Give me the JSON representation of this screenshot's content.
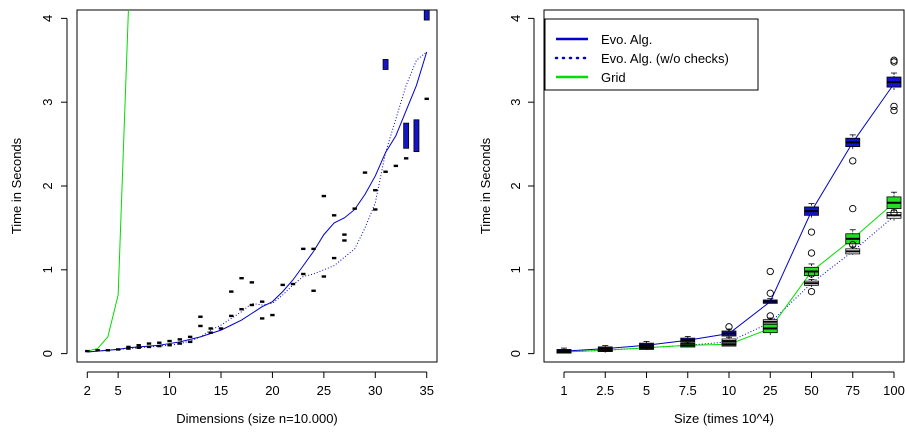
{
  "chart_data": [
    {
      "type": "line",
      "title": "",
      "xlabel": "Dimensions (size n=10.000)",
      "ylabel": "Time in Seconds",
      "xlim": [
        1,
        36
      ],
      "ylim": [
        -0.1,
        4.1
      ],
      "xticks": [
        2,
        5,
        10,
        15,
        20,
        25,
        30,
        35
      ],
      "yticks": [
        0,
        1,
        2,
        3,
        4
      ],
      "grid": false,
      "series": [
        {
          "name": "",
          "color": "#00dd00",
          "style": "solid",
          "x": [
            2,
            3,
            4,
            5,
            6
          ],
          "y": [
            0.03,
            0.06,
            0.2,
            0.7,
            4.1
          ]
        },
        {
          "name": "",
          "color": "#0000cc",
          "style": "solid",
          "x": [
            2,
            3,
            4,
            5,
            6,
            7,
            8,
            9,
            10,
            11,
            12,
            13,
            14,
            15,
            16,
            17,
            18,
            19,
            20,
            21,
            22,
            23,
            24,
            25,
            26,
            27,
            28,
            29,
            30,
            31,
            32,
            33,
            34,
            35
          ],
          "y": [
            0.02,
            0.03,
            0.04,
            0.05,
            0.07,
            0.08,
            0.09,
            0.1,
            0.12,
            0.14,
            0.17,
            0.2,
            0.24,
            0.28,
            0.34,
            0.4,
            0.48,
            0.56,
            0.62,
            0.74,
            0.88,
            1.05,
            1.22,
            1.42,
            1.56,
            1.62,
            1.72,
            1.9,
            2.12,
            2.4,
            2.6,
            2.9,
            3.2,
            3.6
          ]
        },
        {
          "name": "",
          "color": "#0000cc",
          "style": "dotted",
          "x": [
            2,
            3,
            4,
            5,
            6,
            7,
            8,
            9,
            10,
            11,
            12,
            13,
            14,
            15,
            16,
            17,
            18,
            19,
            20,
            21,
            22,
            23,
            24,
            25,
            26,
            27,
            28,
            29,
            30,
            31,
            32,
            33,
            34,
            35
          ],
          "y": [
            0.02,
            0.03,
            0.04,
            0.05,
            0.06,
            0.07,
            0.08,
            0.09,
            0.1,
            0.12,
            0.15,
            0.2,
            0.28,
            0.34,
            0.42,
            0.5,
            0.6,
            0.58,
            0.6,
            0.7,
            0.82,
            0.92,
            0.95,
            1.0,
            1.05,
            1.15,
            1.25,
            1.5,
            1.8,
            2.4,
            2.8,
            3.2,
            3.5,
            3.6
          ]
        }
      ],
      "boxes": [
        {
          "x": 31,
          "y": 3.45,
          "h": 0.12
        },
        {
          "x": 33,
          "y": 2.6,
          "h": 0.3
        },
        {
          "x": 34,
          "y": 2.6,
          "h": 0.38
        },
        {
          "x": 35,
          "y": 4.05,
          "h": 0.14
        }
      ],
      "points": [
        [
          2,
          0.03
        ],
        [
          3,
          0.04
        ],
        [
          4,
          0.04
        ],
        [
          5,
          0.05
        ],
        [
          6,
          0.06
        ],
        [
          7,
          0.07
        ],
        [
          8,
          0.08
        ],
        [
          9,
          0.09
        ],
        [
          10,
          0.1
        ],
        [
          11,
          0.12
        ],
        [
          12,
          0.14
        ],
        [
          6,
          0.08
        ],
        [
          7,
          0.1
        ],
        [
          8,
          0.12
        ],
        [
          9,
          0.13
        ],
        [
          10,
          0.15
        ],
        [
          11,
          0.17
        ],
        [
          12,
          0.2
        ],
        [
          13,
          0.44
        ],
        [
          13,
          0.33
        ],
        [
          14,
          0.25
        ],
        [
          14,
          0.3
        ],
        [
          15,
          0.3
        ],
        [
          16,
          0.74
        ],
        [
          16,
          0.45
        ],
        [
          17,
          0.9
        ],
        [
          17,
          0.53
        ],
        [
          18,
          0.58
        ],
        [
          18,
          0.85
        ],
        [
          19,
          0.42
        ],
        [
          19,
          0.62
        ],
        [
          20,
          0.46
        ],
        [
          21,
          0.82
        ],
        [
          22,
          0.83
        ],
        [
          23,
          1.25
        ],
        [
          23,
          0.95
        ],
        [
          24,
          1.25
        ],
        [
          24,
          0.75
        ],
        [
          25,
          1.88
        ],
        [
          25,
          0.92
        ],
        [
          26,
          1.65
        ],
        [
          26,
          1.14
        ],
        [
          27,
          1.42
        ],
        [
          27,
          1.35
        ],
        [
          28,
          1.73
        ],
        [
          29,
          2.16
        ],
        [
          30,
          1.95
        ],
        [
          30,
          1.72
        ],
        [
          31,
          2.17
        ],
        [
          32,
          2.24
        ],
        [
          33,
          2.33
        ],
        [
          35,
          3.04
        ]
      ]
    },
    {
      "type": "line",
      "title": "",
      "xlabel": "Size (times 10^4)",
      "ylabel": "Time in Seconds",
      "categories": [
        "1",
        "2.5",
        "5",
        "7.5",
        "10",
        "25",
        "50",
        "75",
        "100"
      ],
      "ylim": [
        -0.1,
        4.1
      ],
      "yticks": [
        0,
        1,
        2,
        3,
        4
      ],
      "grid": false,
      "legend_position": "top-left",
      "legend": [
        "Evo. Alg.",
        "Evo. Alg. (w/o checks)",
        "Grid"
      ],
      "series": [
        {
          "name": "Evo. Alg.",
          "color": "#0000cc",
          "style": "solid",
          "values": [
            0.03,
            0.06,
            0.1,
            0.16,
            0.24,
            0.62,
            1.7,
            2.52,
            3.22
          ]
        },
        {
          "name": "Evo. Alg. (w/o checks)",
          "color": "#0000cc",
          "style": "dotted",
          "values": [
            0.02,
            0.04,
            0.07,
            0.1,
            0.14,
            0.37,
            0.84,
            1.22,
            1.64
          ]
        },
        {
          "name": "Grid",
          "color": "#00dd00",
          "style": "solid",
          "values": [
            0.02,
            0.04,
            0.07,
            0.1,
            0.11,
            0.3,
            0.98,
            1.37,
            1.8
          ]
        }
      ],
      "boxes": [
        {
          "series": 0,
          "i": 0,
          "y": 0.03,
          "h": 0.04
        },
        {
          "series": 0,
          "i": 1,
          "y": 0.06,
          "h": 0.04
        },
        {
          "series": 0,
          "i": 2,
          "y": 0.1,
          "h": 0.05
        },
        {
          "series": 0,
          "i": 3,
          "y": 0.16,
          "h": 0.05
        },
        {
          "series": 0,
          "i": 4,
          "y": 0.24,
          "h": 0.06
        },
        {
          "series": 0,
          "i": 5,
          "y": 0.62,
          "h": 0.04
        },
        {
          "series": 0,
          "i": 6,
          "y": 1.7,
          "h": 0.1
        },
        {
          "series": 0,
          "i": 7,
          "y": 2.52,
          "h": 0.1
        },
        {
          "series": 0,
          "i": 8,
          "y": 3.24,
          "h": 0.12
        },
        {
          "series": 1,
          "i": 0,
          "y": 0.02,
          "h": 0.02
        },
        {
          "series": 1,
          "i": 1,
          "y": 0.04,
          "h": 0.03
        },
        {
          "series": 1,
          "i": 2,
          "y": 0.07,
          "h": 0.04
        },
        {
          "series": 1,
          "i": 3,
          "y": 0.1,
          "h": 0.04
        },
        {
          "series": 1,
          "i": 4,
          "y": 0.15,
          "h": 0.05
        },
        {
          "series": 1,
          "i": 5,
          "y": 0.38,
          "h": 0.05
        },
        {
          "series": 1,
          "i": 6,
          "y": 0.84,
          "h": 0.05
        },
        {
          "series": 1,
          "i": 7,
          "y": 1.22,
          "h": 0.06
        },
        {
          "series": 1,
          "i": 8,
          "y": 1.65,
          "h": 0.07
        },
        {
          "series": 2,
          "i": 0,
          "y": 0.02,
          "h": 0.02
        },
        {
          "series": 2,
          "i": 1,
          "y": 0.04,
          "h": 0.03
        },
        {
          "series": 2,
          "i": 2,
          "y": 0.07,
          "h": 0.03
        },
        {
          "series": 2,
          "i": 3,
          "y": 0.1,
          "h": 0.04
        },
        {
          "series": 2,
          "i": 4,
          "y": 0.11,
          "h": 0.04
        },
        {
          "series": 2,
          "i": 5,
          "y": 0.3,
          "h": 0.1
        },
        {
          "series": 2,
          "i": 6,
          "y": 0.98,
          "h": 0.1
        },
        {
          "series": 2,
          "i": 7,
          "y": 1.37,
          "h": 0.12
        },
        {
          "series": 2,
          "i": 8,
          "y": 1.8,
          "h": 0.14
        }
      ],
      "outliers": [
        [
          4,
          0.32
        ],
        [
          5,
          0.98
        ],
        [
          5,
          0.72
        ],
        [
          5,
          0.45
        ],
        [
          6,
          1.45
        ],
        [
          6,
          1.2
        ],
        [
          6,
          0.95
        ],
        [
          6,
          0.74
        ],
        [
          7,
          2.3
        ],
        [
          7,
          1.73
        ],
        [
          7,
          1.3
        ],
        [
          8,
          3.5
        ],
        [
          8,
          3.48
        ],
        [
          8,
          2.95
        ],
        [
          8,
          2.9
        ],
        [
          8,
          1.68
        ]
      ]
    }
  ]
}
